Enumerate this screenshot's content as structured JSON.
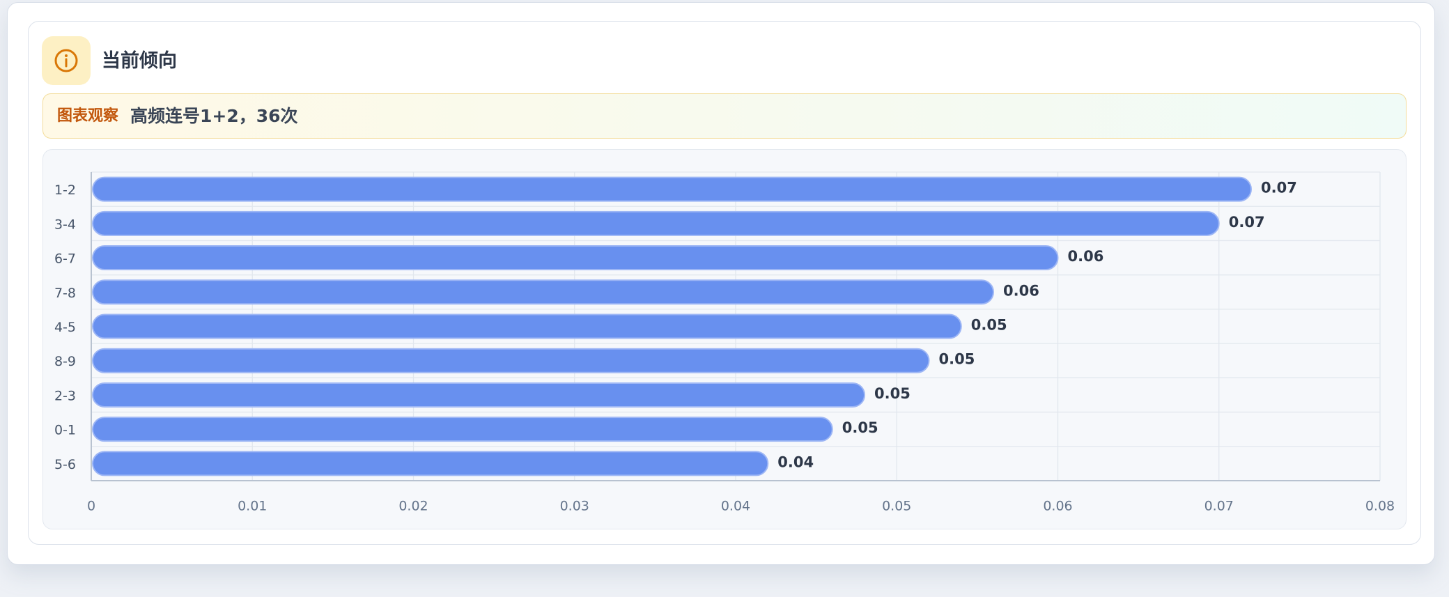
{
  "header": {
    "title": "当前倾向"
  },
  "observation": {
    "label": "图表观察",
    "text": "高频连号1+2，36次"
  },
  "chart_data": {
    "type": "bar",
    "orientation": "horizontal",
    "categories": [
      "1-2",
      "3-4",
      "6-7",
      "7-8",
      "4-5",
      "8-9",
      "2-3",
      "0-1",
      "5-6"
    ],
    "values": [
      0.072,
      0.07,
      0.06,
      0.056,
      0.054,
      0.052,
      0.048,
      0.046,
      0.042
    ],
    "value_labels": [
      "0.07",
      "0.07",
      "0.06",
      "0.06",
      "0.05",
      "0.05",
      "0.05",
      "0.05",
      "0.04"
    ],
    "color": "#6890ef",
    "xlim": [
      0,
      0.08
    ],
    "xticks": [
      0,
      0.01,
      0.02,
      0.03,
      0.04,
      0.05,
      0.06,
      0.07,
      0.08
    ],
    "grid": true
  }
}
